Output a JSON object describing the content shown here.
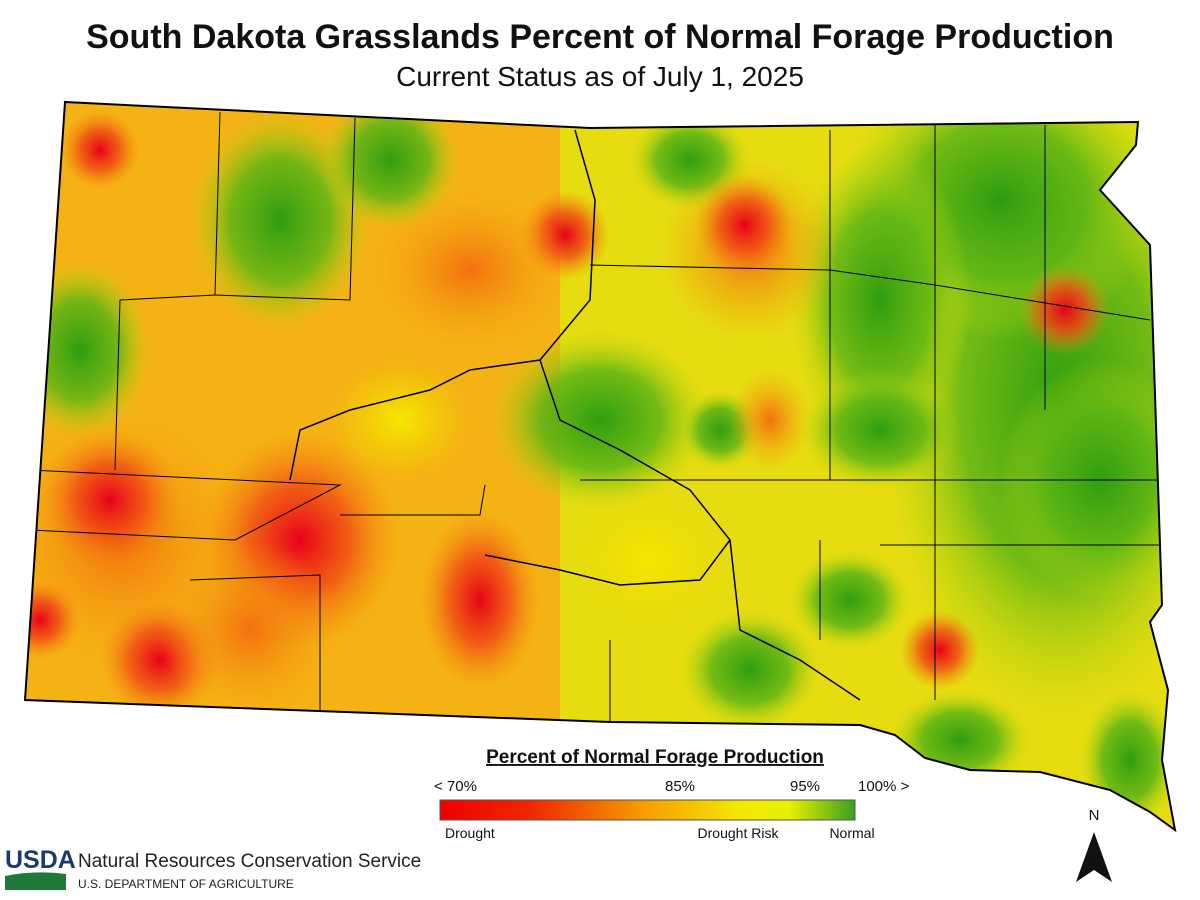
{
  "header": {
    "title": "South Dakota Grasslands Percent of Normal Forage Production",
    "subtitle": "Current Status as of July 1, 2025"
  },
  "legend": {
    "title": "Percent of Normal Forage Production",
    "scale_labels": [
      "< 70%",
      "85%",
      "95%",
      "100% >"
    ],
    "category_labels": [
      "Drought",
      "Drought Risk",
      "Normal"
    ]
  },
  "compass": {
    "label": "N"
  },
  "footer": {
    "logo": "USDA",
    "agency": "Natural Resources Conservation Service",
    "department": "U.S. DEPARTMENT OF AGRICULTURE"
  }
}
